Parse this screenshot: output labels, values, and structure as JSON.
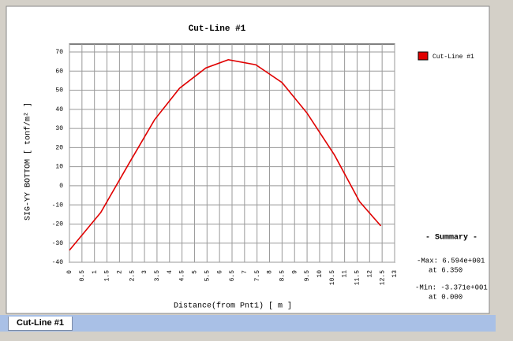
{
  "chart_data": {
    "type": "line",
    "title": "Cut-Line #1",
    "x_label": "Distance(from Pnt1) [ m ]",
    "y_label": "SIG-YY BOTTOM [ tonf/m² ]",
    "series": [
      {
        "name": "Cut-Line #1",
        "color": "#e00000",
        "x": [
          0,
          1.25,
          2.35,
          3.4,
          4.4,
          5.45,
          6.35,
          7.45,
          8.5,
          9.5,
          10.6,
          11.6,
          12.45
        ],
        "values": [
          -33.71,
          -14,
          11,
          34.5,
          51,
          61.6,
          65.94,
          63.3,
          54,
          38,
          16,
          -8.3,
          -21
        ]
      }
    ],
    "xlim": [
      0,
      13
    ],
    "ylim": [
      -40,
      70
    ],
    "xticks": [
      0,
      0.5,
      1,
      1.5,
      2,
      2.5,
      3,
      3.5,
      4,
      4.5,
      5,
      5.5,
      6,
      6.5,
      7,
      7.5,
      8,
      8.5,
      9,
      9.5,
      10,
      10.5,
      11,
      11.5,
      12,
      12.5,
      13
    ],
    "yticks": [
      -40,
      -30,
      -20,
      -10,
      0,
      10,
      20,
      30,
      40,
      50,
      60,
      70
    ],
    "grid": true,
    "legend": "top-right"
  },
  "summary": {
    "title": "- Summary -",
    "max": "-Max: 6.594e+001",
    "max_at": "at 6.350",
    "min": "-Min: -3.371e+001",
    "min_at": "at 0.000"
  },
  "tab": {
    "label": "Cut-Line #1"
  }
}
